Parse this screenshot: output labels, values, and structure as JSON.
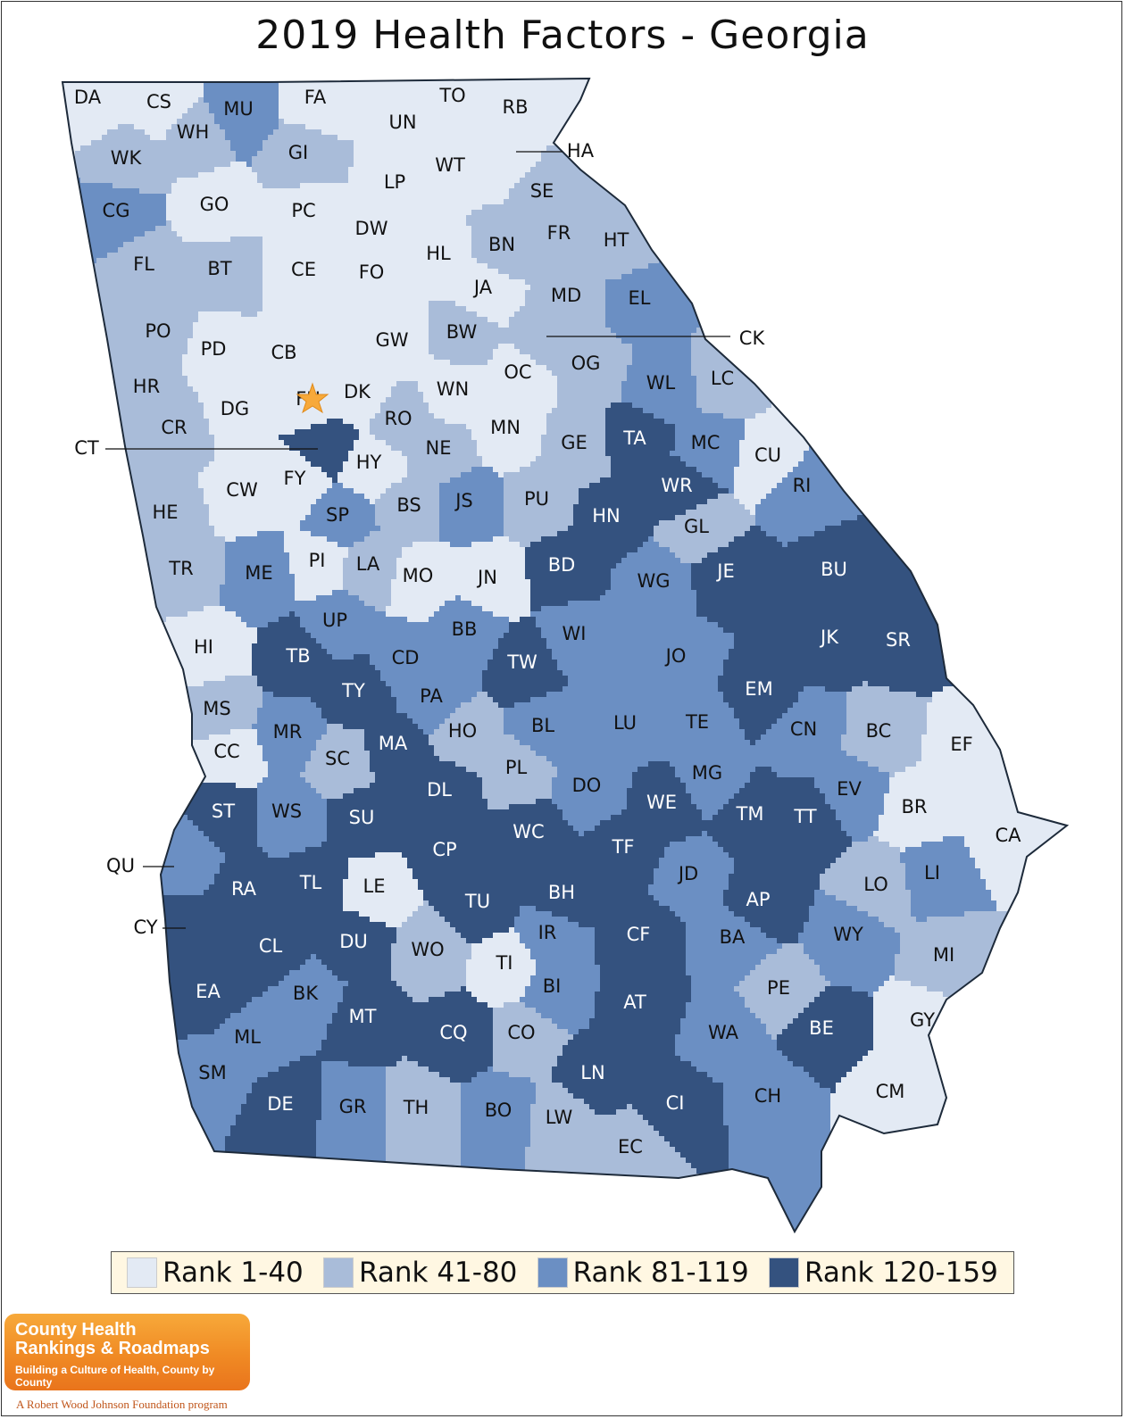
{
  "title": "2019 Health Factors - Georgia",
  "colors": {
    "r1": "#e3eaf4",
    "r2": "#a9bcd9",
    "r3": "#6b8fc3",
    "r4": "#34527f",
    "state_outline": "#1d2a3a",
    "legend_bg": "#fff7e2",
    "logo_orange": "#f08a24",
    "star": "#f7a93a"
  },
  "legend": [
    {
      "label": "Rank 1-40",
      "color": "#e3eaf4"
    },
    {
      "label": "Rank 41-80",
      "color": "#a9bcd9"
    },
    {
      "label": "Rank 81-119",
      "color": "#6b8fc3"
    },
    {
      "label": "Rank 120-159",
      "color": "#34527f"
    }
  ],
  "logo": {
    "line1": "County Health",
    "line2": "Rankings & Roadmaps",
    "line3": "Building a Culture of Health, County by County",
    "footer": "A Robert Wood Johnson Foundation program"
  },
  "capital_marker": "star-icon",
  "counties": [
    {
      "code": "DA",
      "tier": 1
    },
    {
      "code": "CS",
      "tier": 1
    },
    {
      "code": "MU",
      "tier": 3
    },
    {
      "code": "FA",
      "tier": 1
    },
    {
      "code": "TO",
      "tier": 1
    },
    {
      "code": "RB",
      "tier": 1
    },
    {
      "code": "UN",
      "tier": 1
    },
    {
      "code": "WH",
      "tier": 2
    },
    {
      "code": "WK",
      "tier": 2
    },
    {
      "code": "GI",
      "tier": 2
    },
    {
      "code": "WT",
      "tier": 1
    },
    {
      "code": "HA",
      "tier": 1
    },
    {
      "code": "LP",
      "tier": 1
    },
    {
      "code": "SE",
      "tier": 2
    },
    {
      "code": "CG",
      "tier": 3
    },
    {
      "code": "GO",
      "tier": 1
    },
    {
      "code": "PC",
      "tier": 1
    },
    {
      "code": "DW",
      "tier": 1
    },
    {
      "code": "FR",
      "tier": 2
    },
    {
      "code": "BN",
      "tier": 2
    },
    {
      "code": "HT",
      "tier": 2
    },
    {
      "code": "HL",
      "tier": 1
    },
    {
      "code": "FL",
      "tier": 2
    },
    {
      "code": "BT",
      "tier": 2
    },
    {
      "code": "CE",
      "tier": 1
    },
    {
      "code": "FO",
      "tier": 1
    },
    {
      "code": "JA",
      "tier": 1
    },
    {
      "code": "MD",
      "tier": 2
    },
    {
      "code": "EL",
      "tier": 3
    },
    {
      "code": "PO",
      "tier": 2
    },
    {
      "code": "PD",
      "tier": 1
    },
    {
      "code": "CB",
      "tier": 1
    },
    {
      "code": "GW",
      "tier": 1
    },
    {
      "code": "BW",
      "tier": 2
    },
    {
      "code": "CK",
      "tier": 2
    },
    {
      "code": "OG",
      "tier": 2
    },
    {
      "code": "OC",
      "tier": 1
    },
    {
      "code": "HR",
      "tier": 2
    },
    {
      "code": "DG",
      "tier": 1
    },
    {
      "code": "FU",
      "tier": 1
    },
    {
      "code": "DK",
      "tier": 1
    },
    {
      "code": "WN",
      "tier": 1
    },
    {
      "code": "WL",
      "tier": 3
    },
    {
      "code": "LC",
      "tier": 2
    },
    {
      "code": "CR",
      "tier": 2
    },
    {
      "code": "RO",
      "tier": 2
    },
    {
      "code": "MN",
      "tier": 1
    },
    {
      "code": "CT",
      "tier": 4
    },
    {
      "code": "NE",
      "tier": 2
    },
    {
      "code": "GE",
      "tier": 2
    },
    {
      "code": "TA",
      "tier": 4
    },
    {
      "code": "MC",
      "tier": 3
    },
    {
      "code": "CU",
      "tier": 1
    },
    {
      "code": "HY",
      "tier": 1
    },
    {
      "code": "CW",
      "tier": 1
    },
    {
      "code": "FY",
      "tier": 1
    },
    {
      "code": "JS",
      "tier": 3
    },
    {
      "code": "PU",
      "tier": 2
    },
    {
      "code": "HN",
      "tier": 4
    },
    {
      "code": "WR",
      "tier": 4
    },
    {
      "code": "RI",
      "tier": 3
    },
    {
      "code": "HE",
      "tier": 2
    },
    {
      "code": "SP",
      "tier": 3
    },
    {
      "code": "BS",
      "tier": 2
    },
    {
      "code": "GL",
      "tier": 2
    },
    {
      "code": "TR",
      "tier": 2
    },
    {
      "code": "ME",
      "tier": 3
    },
    {
      "code": "PI",
      "tier": 1
    },
    {
      "code": "LA",
      "tier": 2
    },
    {
      "code": "MO",
      "tier": 1
    },
    {
      "code": "JN",
      "tier": 1
    },
    {
      "code": "BD",
      "tier": 4
    },
    {
      "code": "WG",
      "tier": 3
    },
    {
      "code": "JE",
      "tier": 4
    },
    {
      "code": "BU",
      "tier": 4
    },
    {
      "code": "UP",
      "tier": 3
    },
    {
      "code": "BB",
      "tier": 3
    },
    {
      "code": "WI",
      "tier": 3
    },
    {
      "code": "HI",
      "tier": 1
    },
    {
      "code": "TB",
      "tier": 4
    },
    {
      "code": "CD",
      "tier": 3
    },
    {
      "code": "TW",
      "tier": 4
    },
    {
      "code": "JO",
      "tier": 3
    },
    {
      "code": "JK",
      "tier": 4
    },
    {
      "code": "SR",
      "tier": 4
    },
    {
      "code": "TY",
      "tier": 4
    },
    {
      "code": "PA",
      "tier": 3
    },
    {
      "code": "EM",
      "tier": 4
    },
    {
      "code": "MS",
      "tier": 2
    },
    {
      "code": "LU",
      "tier": 3
    },
    {
      "code": "HO",
      "tier": 2
    },
    {
      "code": "BL",
      "tier": 3
    },
    {
      "code": "TE",
      "tier": 3
    },
    {
      "code": "CN",
      "tier": 3
    },
    {
      "code": "BC",
      "tier": 2
    },
    {
      "code": "EF",
      "tier": 1
    },
    {
      "code": "MR",
      "tier": 3
    },
    {
      "code": "MA",
      "tier": 4
    },
    {
      "code": "CC",
      "tier": 1
    },
    {
      "code": "SC",
      "tier": 2
    },
    {
      "code": "PL",
      "tier": 2
    },
    {
      "code": "MG",
      "tier": 3
    },
    {
      "code": "DO",
      "tier": 3
    },
    {
      "code": "DL",
      "tier": 4
    },
    {
      "code": "ST",
      "tier": 4
    },
    {
      "code": "WS",
      "tier": 3
    },
    {
      "code": "SU",
      "tier": 4
    },
    {
      "code": "WE",
      "tier": 4
    },
    {
      "code": "EV",
      "tier": 3
    },
    {
      "code": "TM",
      "tier": 4
    },
    {
      "code": "TT",
      "tier": 4
    },
    {
      "code": "BR",
      "tier": 1
    },
    {
      "code": "WC",
      "tier": 4
    },
    {
      "code": "CP",
      "tier": 4
    },
    {
      "code": "TF",
      "tier": 4
    },
    {
      "code": "CA",
      "tier": 1
    },
    {
      "code": "QU",
      "tier": 3
    },
    {
      "code": "RA",
      "tier": 4
    },
    {
      "code": "TL",
      "tier": 4
    },
    {
      "code": "LE",
      "tier": 1
    },
    {
      "code": "JD",
      "tier": 3
    },
    {
      "code": "LI",
      "tier": 3
    },
    {
      "code": "LO",
      "tier": 2
    },
    {
      "code": "TU",
      "tier": 4
    },
    {
      "code": "BH",
      "tier": 4
    },
    {
      "code": "AP",
      "tier": 4
    },
    {
      "code": "CY",
      "tier": 4
    },
    {
      "code": "IR",
      "tier": 3
    },
    {
      "code": "CF",
      "tier": 4
    },
    {
      "code": "WY",
      "tier": 3
    },
    {
      "code": "CL",
      "tier": 4
    },
    {
      "code": "DU",
      "tier": 4
    },
    {
      "code": "WO",
      "tier": 2
    },
    {
      "code": "BA",
      "tier": 3
    },
    {
      "code": "MI",
      "tier": 2
    },
    {
      "code": "TI",
      "tier": 1
    },
    {
      "code": "EA",
      "tier": 4
    },
    {
      "code": "BK",
      "tier": 3
    },
    {
      "code": "BI",
      "tier": 3
    },
    {
      "code": "PE",
      "tier": 2
    },
    {
      "code": "AT",
      "tier": 4
    },
    {
      "code": "MT",
      "tier": 4
    },
    {
      "code": "GY",
      "tier": 1
    },
    {
      "code": "CQ",
      "tier": 4
    },
    {
      "code": "ML",
      "tier": 3
    },
    {
      "code": "CO",
      "tier": 2
    },
    {
      "code": "WA",
      "tier": 3
    },
    {
      "code": "BE",
      "tier": 4
    },
    {
      "code": "SM",
      "tier": 3
    },
    {
      "code": "LN",
      "tier": 4
    },
    {
      "code": "DE",
      "tier": 4
    },
    {
      "code": "GR",
      "tier": 3
    },
    {
      "code": "TH",
      "tier": 2
    },
    {
      "code": "BO",
      "tier": 3
    },
    {
      "code": "CI",
      "tier": 4
    },
    {
      "code": "CH",
      "tier": 3
    },
    {
      "code": "CM",
      "tier": 1
    },
    {
      "code": "LW",
      "tier": 2
    },
    {
      "code": "EC",
      "tier": 2
    }
  ]
}
